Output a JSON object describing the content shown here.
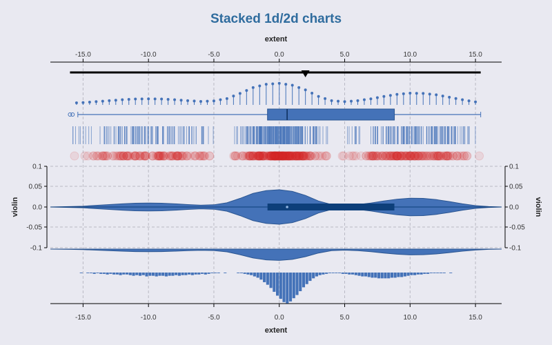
{
  "chart_data": {
    "type": "stacked-1d-2d",
    "title": "Stacked 1d/2d charts",
    "xlabel": "extent",
    "ylabel": "violin",
    "xlim": [
      -17.5,
      17
    ],
    "xticks": [
      "-15.0",
      "-10.0",
      "-5.0",
      "0.0",
      "5.0",
      "10.0",
      "15.0"
    ],
    "yticks": [
      "0.1",
      "0.05",
      "0.0",
      "-0.05",
      "-0.1"
    ],
    "ylim": [
      -0.1,
      0.1
    ],
    "grid": true,
    "colors": {
      "title": "#2f6c9e",
      "primary": "#4472b8",
      "dark": "#0d3f7a",
      "scatter": "#d62728",
      "axis": "#000000"
    },
    "line": {
      "range": [
        -16,
        15.4
      ],
      "marker_x": 2
    },
    "boxplot": {
      "min": -15.4,
      "q1": -0.9,
      "median": 0.6,
      "q3": 8.8,
      "max": 15.4,
      "outliers": [
        -16.0,
        -15.8
      ]
    },
    "modes": [
      {
        "center": -10,
        "sd": 2.8,
        "weight": 0.24,
        "range": [
          -16,
          -4.8
        ]
      },
      {
        "center": 0,
        "sd": 1.6,
        "weight": 0.45,
        "range": [
          -3.5,
          3.7
        ]
      },
      {
        "center": 10,
        "sd": 2.8,
        "weight": 0.31,
        "range": [
          4.5,
          15.4
        ]
      }
    ],
    "violin": {
      "x": [
        -17.5,
        -16,
        -15,
        -14,
        -13,
        -12,
        -11,
        -10,
        -9,
        -8,
        -7,
        -6,
        -5,
        -4,
        -3,
        -2,
        -1,
        0,
        1,
        2,
        3,
        4,
        5,
        6,
        7,
        8,
        9,
        10,
        11,
        12,
        13,
        14,
        15,
        16,
        17
      ],
      "density": [
        0.0,
        0.002,
        0.004,
        0.008,
        0.012,
        0.016,
        0.019,
        0.02,
        0.019,
        0.016,
        0.012,
        0.009,
        0.011,
        0.021,
        0.043,
        0.068,
        0.082,
        0.086,
        0.078,
        0.058,
        0.03,
        0.012,
        0.008,
        0.012,
        0.02,
        0.03,
        0.039,
        0.044,
        0.043,
        0.037,
        0.027,
        0.016,
        0.007,
        0.002,
        0.0
      ]
    },
    "histogram": {
      "bin_start": -15.25,
      "bin_width": 0.25,
      "counts": [
        1,
        0,
        1,
        1,
        2,
        1,
        2,
        2,
        3,
        2,
        3,
        3,
        4,
        3,
        3,
        4,
        5,
        4,
        5,
        4,
        6,
        5,
        5,
        6,
        5,
        5,
        6,
        5,
        5,
        4,
        5,
        4,
        4,
        3,
        4,
        3,
        3,
        2,
        3,
        2,
        1,
        1,
        1,
        0,
        1,
        0,
        0,
        0,
        1,
        1,
        2,
        3,
        4,
        6,
        8,
        11,
        15,
        19,
        24,
        30,
        36,
        41,
        46,
        48,
        45,
        40,
        35,
        29,
        23,
        18,
        13,
        9,
        6,
        4,
        3,
        2,
        1,
        1,
        1,
        1,
        2,
        2,
        3,
        3,
        4,
        5,
        6,
        6,
        7,
        8,
        8,
        9,
        9,
        9,
        9,
        8,
        8,
        7,
        7,
        6,
        5,
        4,
        4,
        3,
        3,
        2,
        2,
        1,
        1,
        1,
        1,
        1,
        0,
        1
      ]
    },
    "lollipop": {
      "start": -15.5,
      "step": 0.5,
      "count": 62
    }
  }
}
